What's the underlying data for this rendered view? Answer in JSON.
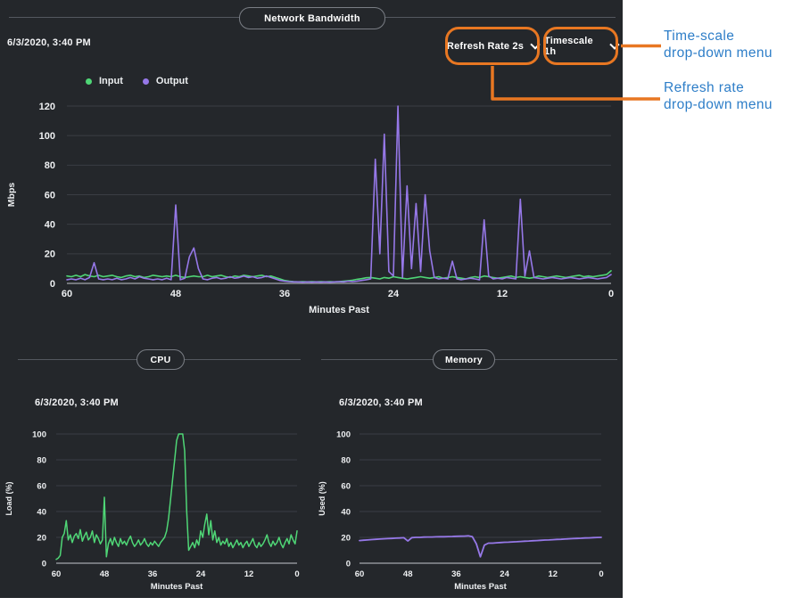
{
  "network": {
    "timestamp": "6/3/2020, 3:40 PM",
    "refresh_dropdown": {
      "label": "Refresh Rate 2s"
    },
    "timescale_dropdown": {
      "label": "Timescale 1h"
    }
  },
  "cpu": {
    "timestamp": "6/3/2020, 3:40 PM"
  },
  "memory": {
    "timestamp": "6/3/2020, 3:40 PM"
  },
  "annotations": {
    "timescale": {
      "line1": "Time-scale",
      "line2": "drop-down menu"
    },
    "refresh": {
      "line1": "Refresh rate",
      "line2": "drop-down menu"
    },
    "text_color": "#2e7ec8",
    "callout_color": "#e87722"
  },
  "icons": {
    "dropdown_chevron": "chevron-down"
  },
  "colors": {
    "panel_bg": "#24272b",
    "grid": "#3a3e44",
    "axis_baseline": "#8f9297",
    "input_green": "#4fd676",
    "output_purple": "#9678e8"
  },
  "chart_data": [
    {
      "type": "line",
      "title": "Network Bandwidth",
      "xlabel": "Minutes Past",
      "ylabel": "Mbps",
      "xlim": [
        60,
        0
      ],
      "ylim": [
        0,
        120
      ],
      "x_ticks": [
        60,
        48,
        36,
        24,
        12,
        0
      ],
      "y_ticks": [
        0,
        20,
        40,
        60,
        80,
        100,
        120
      ],
      "grid": true,
      "legend_position": "top-left",
      "series": [
        {
          "name": "Input",
          "color": "#4fd676",
          "x_start": 60,
          "x_step": -0.5,
          "values": [
            5,
            4.5,
            5.5,
            4.5,
            6,
            5,
            4.5,
            5.5,
            4.5,
            5,
            5.5,
            4.5,
            4,
            5,
            5.5,
            4.5,
            5,
            4,
            4.5,
            5.5,
            5,
            4.5,
            5,
            4.5,
            5.5,
            4.5,
            4,
            4.5,
            5,
            4.5,
            4.5,
            5.5,
            4.5,
            5,
            5.5,
            4.5,
            4,
            5,
            4.5,
            5.5,
            5,
            4.5,
            5,
            5.5,
            4.5,
            5,
            4,
            3,
            2,
            1.5,
            1.2,
            1,
            1.2,
            1,
            1.2,
            1,
            1.2,
            1,
            1.2,
            1,
            1.2,
            1.5,
            1.8,
            2.2,
            2.8,
            3.2,
            3.8,
            4,
            3.5,
            3,
            4,
            3.5,
            4.5,
            4,
            3.5,
            3,
            3.5,
            4,
            4.5,
            4,
            3.5,
            4,
            4.5,
            3.5,
            4,
            4.5,
            4,
            3.5,
            3,
            4,
            4.5,
            4,
            5,
            4.5,
            4,
            3.5,
            4,
            4.5,
            5,
            4,
            4.5,
            4,
            3.5,
            4,
            5,
            4.5,
            4,
            4.5,
            5,
            4.5,
            4,
            4.5,
            5,
            5.5,
            4.5,
            5,
            4.5,
            5,
            5.5,
            6,
            8.5
          ]
        },
        {
          "name": "Output",
          "color": "#9678e8",
          "x_start": 60,
          "x_step": -0.5,
          "values": [
            2.5,
            3,
            2.5,
            3.5,
            2.5,
            4,
            14,
            3,
            2.5,
            3,
            2.5,
            3.5,
            2.5,
            3,
            4,
            3,
            4.5,
            3.5,
            3,
            2.5,
            3,
            2.5,
            3.5,
            2.5,
            53,
            2.5,
            3.5,
            18,
            24,
            10,
            3,
            2.5,
            3.5,
            4,
            3,
            3.5,
            4.5,
            3.5,
            4,
            5,
            4,
            4.5,
            3.5,
            4,
            5,
            4,
            3,
            2,
            1.5,
            1.2,
            1,
            1,
            0.8,
            1,
            0.8,
            1,
            0.8,
            1,
            0.8,
            1,
            1.2,
            1,
            1.5,
            1.2,
            1.5,
            2,
            2.5,
            3,
            84,
            20,
            101,
            8,
            5,
            120,
            4,
            66,
            10,
            54,
            8,
            60,
            22,
            4,
            3,
            3.5,
            3,
            15,
            3,
            2.5,
            3,
            3.5,
            3,
            2.5,
            43,
            5,
            3,
            3.5,
            3,
            4,
            3.5,
            3,
            57,
            5,
            22,
            4,
            3.5,
            3,
            3.5,
            4,
            3.5,
            3,
            3.5,
            4,
            3.5,
            3,
            3.5,
            4,
            3.5,
            3,
            3.5,
            4,
            6
          ]
        }
      ]
    },
    {
      "type": "line",
      "title": "CPU",
      "xlabel": "Minutes Past",
      "ylabel": "Load (%)",
      "xlim": [
        60,
        0
      ],
      "ylim": [
        0,
        100
      ],
      "x_ticks": [
        60,
        48,
        36,
        24,
        12,
        0
      ],
      "y_ticks": [
        0,
        20,
        40,
        60,
        80,
        100
      ],
      "grid": true,
      "series": [
        {
          "name": "Load",
          "color": "#4fd676",
          "x_start": 60,
          "x_step": -0.5,
          "values": [
            3,
            4,
            6,
            20,
            23,
            33,
            18,
            22,
            16,
            21,
            23,
            19,
            26,
            17,
            21,
            24,
            18,
            20,
            25,
            16,
            22,
            19,
            15,
            18,
            51,
            5,
            15,
            19,
            14,
            20,
            16,
            13,
            19,
            15,
            17,
            14,
            18,
            21,
            16,
            13,
            15,
            18,
            14,
            16,
            19,
            15,
            13,
            16,
            14,
            17,
            15,
            13,
            16,
            18,
            20,
            25,
            35,
            50,
            65,
            80,
            95,
            100,
            100,
            100,
            87,
            40,
            10,
            13,
            16,
            12,
            18,
            14,
            25,
            20,
            30,
            38,
            22,
            33,
            18,
            25,
            16,
            20,
            14,
            17,
            15,
            19,
            13,
            16,
            12,
            15,
            18,
            14,
            16,
            12,
            15,
            17,
            13,
            16,
            19,
            14,
            12,
            16,
            13,
            15,
            18,
            22,
            16,
            13,
            17,
            14,
            16,
            20,
            15,
            12,
            16,
            19,
            15,
            22,
            18,
            15,
            25
          ]
        }
      ]
    },
    {
      "type": "line",
      "title": "Memory",
      "xlabel": "Minutes Past",
      "ylabel": "Used (%)",
      "xlim": [
        60,
        0
      ],
      "ylim": [
        0,
        100
      ],
      "x_ticks": [
        60,
        48,
        36,
        24,
        12,
        0
      ],
      "y_ticks": [
        0,
        20,
        40,
        60,
        80,
        100
      ],
      "grid": true,
      "series": [
        {
          "name": "Used",
          "color": "#9678e8",
          "x_start": 60,
          "x_step": -1,
          "values": [
            17.5,
            17.8,
            18,
            18.3,
            18.5,
            18.7,
            18.9,
            19,
            19.2,
            19.4,
            19.5,
            19.7,
            17.2,
            19.8,
            20,
            20,
            20.2,
            20.3,
            20.3,
            20.4,
            20.5,
            20.5,
            20.6,
            20.7,
            20.8,
            20.9,
            21,
            21.2,
            20.5,
            15,
            5,
            14,
            15.5,
            15.5,
            15.8,
            16,
            16.2,
            16.3,
            16.5,
            16.6,
            16.8,
            17,
            17.2,
            17.4,
            17.5,
            17.7,
            17.9,
            18,
            18.2,
            18.4,
            18.5,
            18.7,
            18.9,
            19,
            19.2,
            19.3,
            19.5,
            19.6,
            19.8,
            19.9,
            20
          ]
        }
      ]
    }
  ]
}
